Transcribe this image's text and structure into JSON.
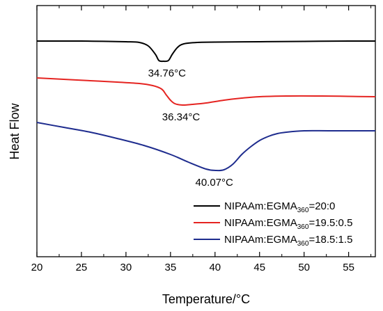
{
  "chart_data": {
    "type": "line",
    "xlabel": "Temperature/°C",
    "ylabel": "Heat Flow",
    "xlim": [
      20,
      58
    ],
    "xticks": [
      "20",
      "25",
      "30",
      "35",
      "40",
      "45",
      "50",
      "55"
    ],
    "y_tick_labels": false,
    "grid": false,
    "legend_position": "bottom-right",
    "series": [
      {
        "name_prefix": "NIPAAm:EGMA",
        "name_sub": "360",
        "name_suffix": "=20:0",
        "color": "#000000",
        "points": [
          [
            20,
            51
          ],
          [
            25,
            51
          ],
          [
            28,
            51.5
          ],
          [
            30,
            52
          ],
          [
            31.5,
            53
          ],
          [
            32.5,
            58
          ],
          [
            33.3,
            70
          ],
          [
            33.7,
            79
          ],
          [
            34.2,
            80
          ],
          [
            34.76,
            79
          ],
          [
            35.2,
            70
          ],
          [
            35.8,
            60
          ],
          [
            36.5,
            55
          ],
          [
            38,
            53
          ],
          [
            40,
            52.5
          ],
          [
            45,
            52
          ],
          [
            50,
            51.5
          ],
          [
            55,
            51
          ],
          [
            58,
            51
          ]
        ]
      },
      {
        "name_prefix": "NIPAAm:EGMA",
        "name_sub": "360",
        "name_suffix": "=19.5:0.5",
        "color": "#e52421",
        "points": [
          [
            20,
            104
          ],
          [
            23,
            106
          ],
          [
            26,
            108
          ],
          [
            29,
            110
          ],
          [
            31.5,
            112
          ],
          [
            33,
            115
          ],
          [
            34,
            120
          ],
          [
            34.5,
            128
          ],
          [
            35,
            136
          ],
          [
            35.5,
            141
          ],
          [
            36.34,
            143
          ],
          [
            37.5,
            142
          ],
          [
            39,
            140
          ],
          [
            41,
            136
          ],
          [
            43,
            133
          ],
          [
            45,
            131
          ],
          [
            48,
            130
          ],
          [
            52,
            130
          ],
          [
            55,
            130.5
          ],
          [
            58,
            131
          ]
        ]
      },
      {
        "name_prefix": "NIPAAm:EGMA",
        "name_sub": "360",
        "name_suffix": "=18.5:1.5",
        "color": "#1e2c8e",
        "points": [
          [
            20,
            168
          ],
          [
            23,
            175
          ],
          [
            26,
            182
          ],
          [
            29,
            191
          ],
          [
            32,
            201
          ],
          [
            35,
            214
          ],
          [
            37,
            225
          ],
          [
            39,
            235
          ],
          [
            40.07,
            237
          ],
          [
            41,
            236
          ],
          [
            42,
            228
          ],
          [
            43,
            214
          ],
          [
            44,
            203
          ],
          [
            45,
            194
          ],
          [
            46,
            188
          ],
          [
            47,
            184
          ],
          [
            48,
            182
          ],
          [
            50,
            180
          ],
          [
            53,
            180
          ],
          [
            58,
            180
          ]
        ]
      }
    ],
    "annotations": [
      {
        "text": "34.76°C",
        "x": 34.76
      },
      {
        "text": "36.34°C",
        "x": 36.34
      },
      {
        "text": "40.07°C",
        "x": 40.07
      }
    ]
  }
}
